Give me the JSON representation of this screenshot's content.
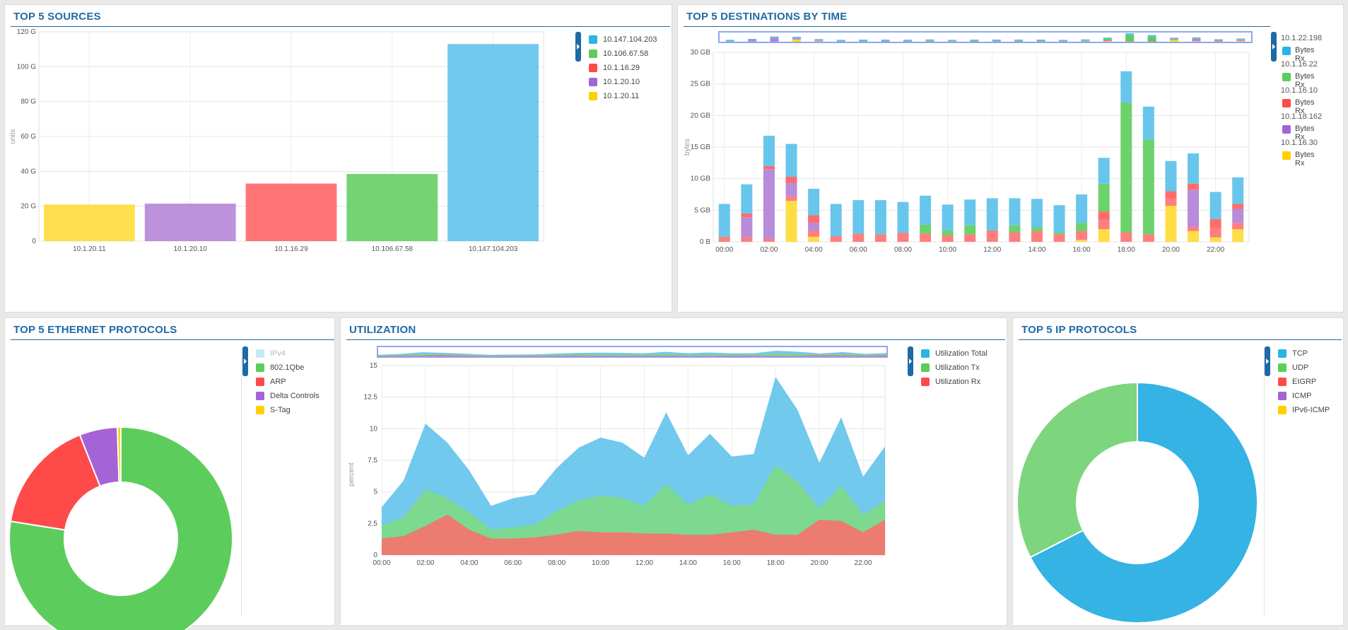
{
  "panels": {
    "sources": {
      "title": "TOP 5 SOURCES"
    },
    "destinations": {
      "title": "TOP 5 DESTINATIONS BY TIME"
    },
    "ethernet": {
      "title": "TOP 5 ETHERNET PROTOCOLS"
    },
    "utilization": {
      "title": "UTILIZATION"
    },
    "ip": {
      "title": "TOP 5 IP PROTOCOLS"
    }
  },
  "colors": {
    "blue": "#58c0ea",
    "green": "#5ccd5c",
    "red": "#ff5c5c",
    "purple": "#b07fd6",
    "yellow": "#ffd930",
    "accent": "#1f6aa5"
  },
  "chart_data": [
    {
      "id": "sources",
      "type": "bar",
      "title": "TOP 5 SOURCES",
      "ylabel": "units",
      "ylim": [
        0,
        120
      ],
      "yticks": [
        "0",
        "20 G",
        "40 G",
        "60 G",
        "80 G",
        "100 G",
        "120 G"
      ],
      "categories": [
        "10.1.20.11",
        "10.1.20.10",
        "10.1.16.29",
        "10.106.67.58",
        "10.147.104.203"
      ],
      "values": [
        21,
        21.5,
        33,
        38.5,
        113
      ],
      "bar_colors": [
        "#ffd930",
        "#b07fd6",
        "#ff5c5c",
        "#5ccd5c",
        "#58c0ea"
      ],
      "legend": [
        {
          "label": "10.147.104.203",
          "color": "#2ab4e4"
        },
        {
          "label": "10.106.67.58",
          "color": "#5ccd5c"
        },
        {
          "label": "10.1.16.29",
          "color": "#ff4a4a"
        },
        {
          "label": "10.1.20.10",
          "color": "#a463d6"
        },
        {
          "label": "10.1.20.11",
          "color": "#ffd000"
        }
      ]
    },
    {
      "id": "destinations",
      "type": "bar",
      "stacked": true,
      "title": "TOP 5 DESTINATIONS BY TIME",
      "ylabel": "bytes",
      "ylim": [
        0,
        30
      ],
      "yticks": [
        "0 B",
        "5 GB",
        "10 GB",
        "15 GB",
        "20 GB",
        "25 GB",
        "30 GB"
      ],
      "x": [
        "00:00",
        "01:00",
        "02:00",
        "03:00",
        "04:00",
        "05:00",
        "06:00",
        "07:00",
        "08:00",
        "09:00",
        "10:00",
        "11:00",
        "12:00",
        "13:00",
        "14:00",
        "15:00",
        "16:00",
        "17:00",
        "18:00",
        "19:00",
        "20:00",
        "21:00",
        "22:00",
        "23:00"
      ],
      "xtick_labels": [
        "00:00",
        "02:00",
        "04:00",
        "06:00",
        "08:00",
        "10:00",
        "12:00",
        "14:00",
        "16:00",
        "18:00",
        "20:00",
        "22:00"
      ],
      "series": [
        {
          "name": "Bytes Rx",
          "color": "#ffd930",
          "values": [
            0,
            0,
            0,
            6.5,
            0.8,
            0,
            0,
            0,
            0,
            0,
            0,
            0,
            0,
            0,
            0,
            0,
            0.3,
            2,
            0,
            0,
            5.7,
            1.7,
            0.7,
            2
          ]
        },
        {
          "name": "Bytes Rx",
          "color": "#ff7070",
          "values": [
            0.8,
            0.7,
            0.5,
            0.7,
            1,
            0.9,
            1.3,
            1.2,
            1.4,
            1.3,
            1,
            1.2,
            1.8,
            1.5,
            1.7,
            1.2,
            1.4,
            1.5,
            1.5,
            1.2,
            1.2,
            0.7,
            1.5,
            1
          ]
        },
        {
          "name": "Bytes Rx",
          "color": "#b07fd6",
          "values": [
            0,
            3.2,
            11,
            2.1,
            1.2,
            0,
            0,
            0,
            0,
            0,
            0,
            0,
            0,
            0,
            0,
            0,
            0,
            0,
            0,
            0,
            0,
            5.8,
            0,
            2.2
          ]
        },
        {
          "name": "Bytes Rx",
          "color": "#ff5c5c",
          "values": [
            0,
            0.6,
            0.5,
            1,
            1.2,
            0,
            0,
            0,
            0,
            0,
            0,
            0,
            0,
            0,
            0,
            0,
            0,
            1.3,
            0,
            0,
            1.1,
            1,
            1.4,
            0.8
          ]
        },
        {
          "name": "Bytes Rx",
          "color": "#5ccd5c",
          "values": [
            0,
            0,
            0,
            0,
            0,
            0,
            0,
            0,
            0,
            1.4,
            0.8,
            1.4,
            0,
            1.1,
            0.6,
            0.3,
            1.3,
            4.4,
            20.5,
            15,
            0,
            0,
            0,
            0
          ]
        },
        {
          "name": "Bytes Rx",
          "color": "#58c0ea",
          "values": [
            5.2,
            4.6,
            4.8,
            5.2,
            4.2,
            5.1,
            5.3,
            5.4,
            4.9,
            4.6,
            4.1,
            4.1,
            5.1,
            4.3,
            4.5,
            4.3,
            4.5,
            4.1,
            5,
            5.2,
            4.8,
            4.8,
            4.3,
            4.2
          ]
        }
      ],
      "legend": [
        {
          "group": "10.1.22.198",
          "label": "Bytes Rx",
          "color": "#2ab4e4"
        },
        {
          "group": "10.1.16.22",
          "label": "Bytes Rx",
          "color": "#5ccd5c"
        },
        {
          "group": "10.1.16.10",
          "label": "Bytes Rx",
          "color": "#ff4a4a"
        },
        {
          "group": "10.1.18.162",
          "label": "Bytes Rx",
          "color": "#a463d6"
        },
        {
          "group": "10.1.16.30",
          "label": "Bytes Rx",
          "color": "#ffd000"
        }
      ]
    },
    {
      "id": "ethernet",
      "type": "pie",
      "donut": true,
      "title": "TOP 5 ETHERNET PROTOCOLS",
      "slices": [
        {
          "label": "802.1Qbe",
          "value": 77.5,
          "color": "#5ccd5c"
        },
        {
          "label": "ARP",
          "value": 16.5,
          "color": "#ff4a4a"
        },
        {
          "label": "Delta Controls",
          "value": 5.5,
          "color": "#a463d6"
        },
        {
          "label": "S-Tag",
          "value": 0.5,
          "color": "#ffd000"
        }
      ],
      "legend": [
        {
          "label": "IPv4",
          "color": "#c8eaf5",
          "disabled": true
        },
        {
          "label": "802.1Qbe",
          "color": "#5ccd5c"
        },
        {
          "label": "ARP",
          "color": "#ff4a4a"
        },
        {
          "label": "Delta Controls",
          "color": "#a463d6"
        },
        {
          "label": "S-Tag",
          "color": "#ffd000"
        }
      ]
    },
    {
      "id": "utilization",
      "type": "area",
      "title": "UTILIZATION",
      "ylabel": "percent",
      "ylim": [
        0,
        15
      ],
      "yticks": [
        "0",
        "2.5",
        "5",
        "7.5",
        "10",
        "12.5",
        "15"
      ],
      "x": [
        "00:00",
        "01:00",
        "02:00",
        "03:00",
        "04:00",
        "05:00",
        "06:00",
        "07:00",
        "08:00",
        "09:00",
        "10:00",
        "11:00",
        "12:00",
        "13:00",
        "14:00",
        "15:00",
        "16:00",
        "17:00",
        "18:00",
        "19:00",
        "20:00",
        "21:00",
        "22:00",
        "23:00"
      ],
      "xtick_labels": [
        "00:00",
        "02:00",
        "04:00",
        "06:00",
        "08:00",
        "10:00",
        "12:00",
        "14:00",
        "16:00",
        "18:00",
        "20:00",
        "22:00"
      ],
      "series": [
        {
          "name": "Utilization Total",
          "color": "#58c0ea",
          "values": [
            3.8,
            5.9,
            10.4,
            8.9,
            6.7,
            3.9,
            4.5,
            4.8,
            6.9,
            8.5,
            9.3,
            8.9,
            7.7,
            11.3,
            7.9,
            9.6,
            7.8,
            8,
            14.1,
            11.5,
            7.3,
            10.9,
            6.2,
            8.6
          ]
        },
        {
          "name": "Utilization Tx",
          "color": "#7fdb7f",
          "values": [
            2.3,
            3,
            5.2,
            4.5,
            3.4,
            2,
            2.2,
            2.4,
            3.5,
            4.3,
            4.7,
            4.5,
            3.9,
            5.6,
            4,
            4.8,
            3.9,
            4,
            7.1,
            5.8,
            3.7,
            5.5,
            3.2,
            4.3
          ]
        },
        {
          "name": "Utilization Rx",
          "color": "#ff6b6b",
          "values": [
            1.3,
            1.5,
            2.3,
            3.2,
            2,
            1.3,
            1.3,
            1.4,
            1.6,
            1.9,
            1.8,
            1.8,
            1.7,
            1.7,
            1.6,
            1.6,
            1.8,
            2,
            1.6,
            1.6,
            2.8,
            2.7,
            1.8,
            2.8
          ]
        }
      ],
      "legend": [
        {
          "label": "Utilization Total",
          "color": "#2ab4e4"
        },
        {
          "label": "Utilization Tx",
          "color": "#5ccd5c"
        },
        {
          "label": "Utilization Rx",
          "color": "#ff4a4a"
        }
      ]
    },
    {
      "id": "ip",
      "type": "pie",
      "donut": true,
      "title": "TOP 5 IP PROTOCOLS",
      "slices": [
        {
          "label": "TCP",
          "value": 67.5,
          "color": "#35b3e4"
        },
        {
          "label": "UDP",
          "value": 32.5,
          "color": "#7dd57d"
        }
      ],
      "legend": [
        {
          "label": "TCP",
          "color": "#2ab4e4"
        },
        {
          "label": "UDP",
          "color": "#5ccd5c"
        },
        {
          "label": "EIGRP",
          "color": "#ff4a4a"
        },
        {
          "label": "ICMP",
          "color": "#a463d6"
        },
        {
          "label": "IPv6-ICMP",
          "color": "#ffd000"
        }
      ]
    }
  ]
}
